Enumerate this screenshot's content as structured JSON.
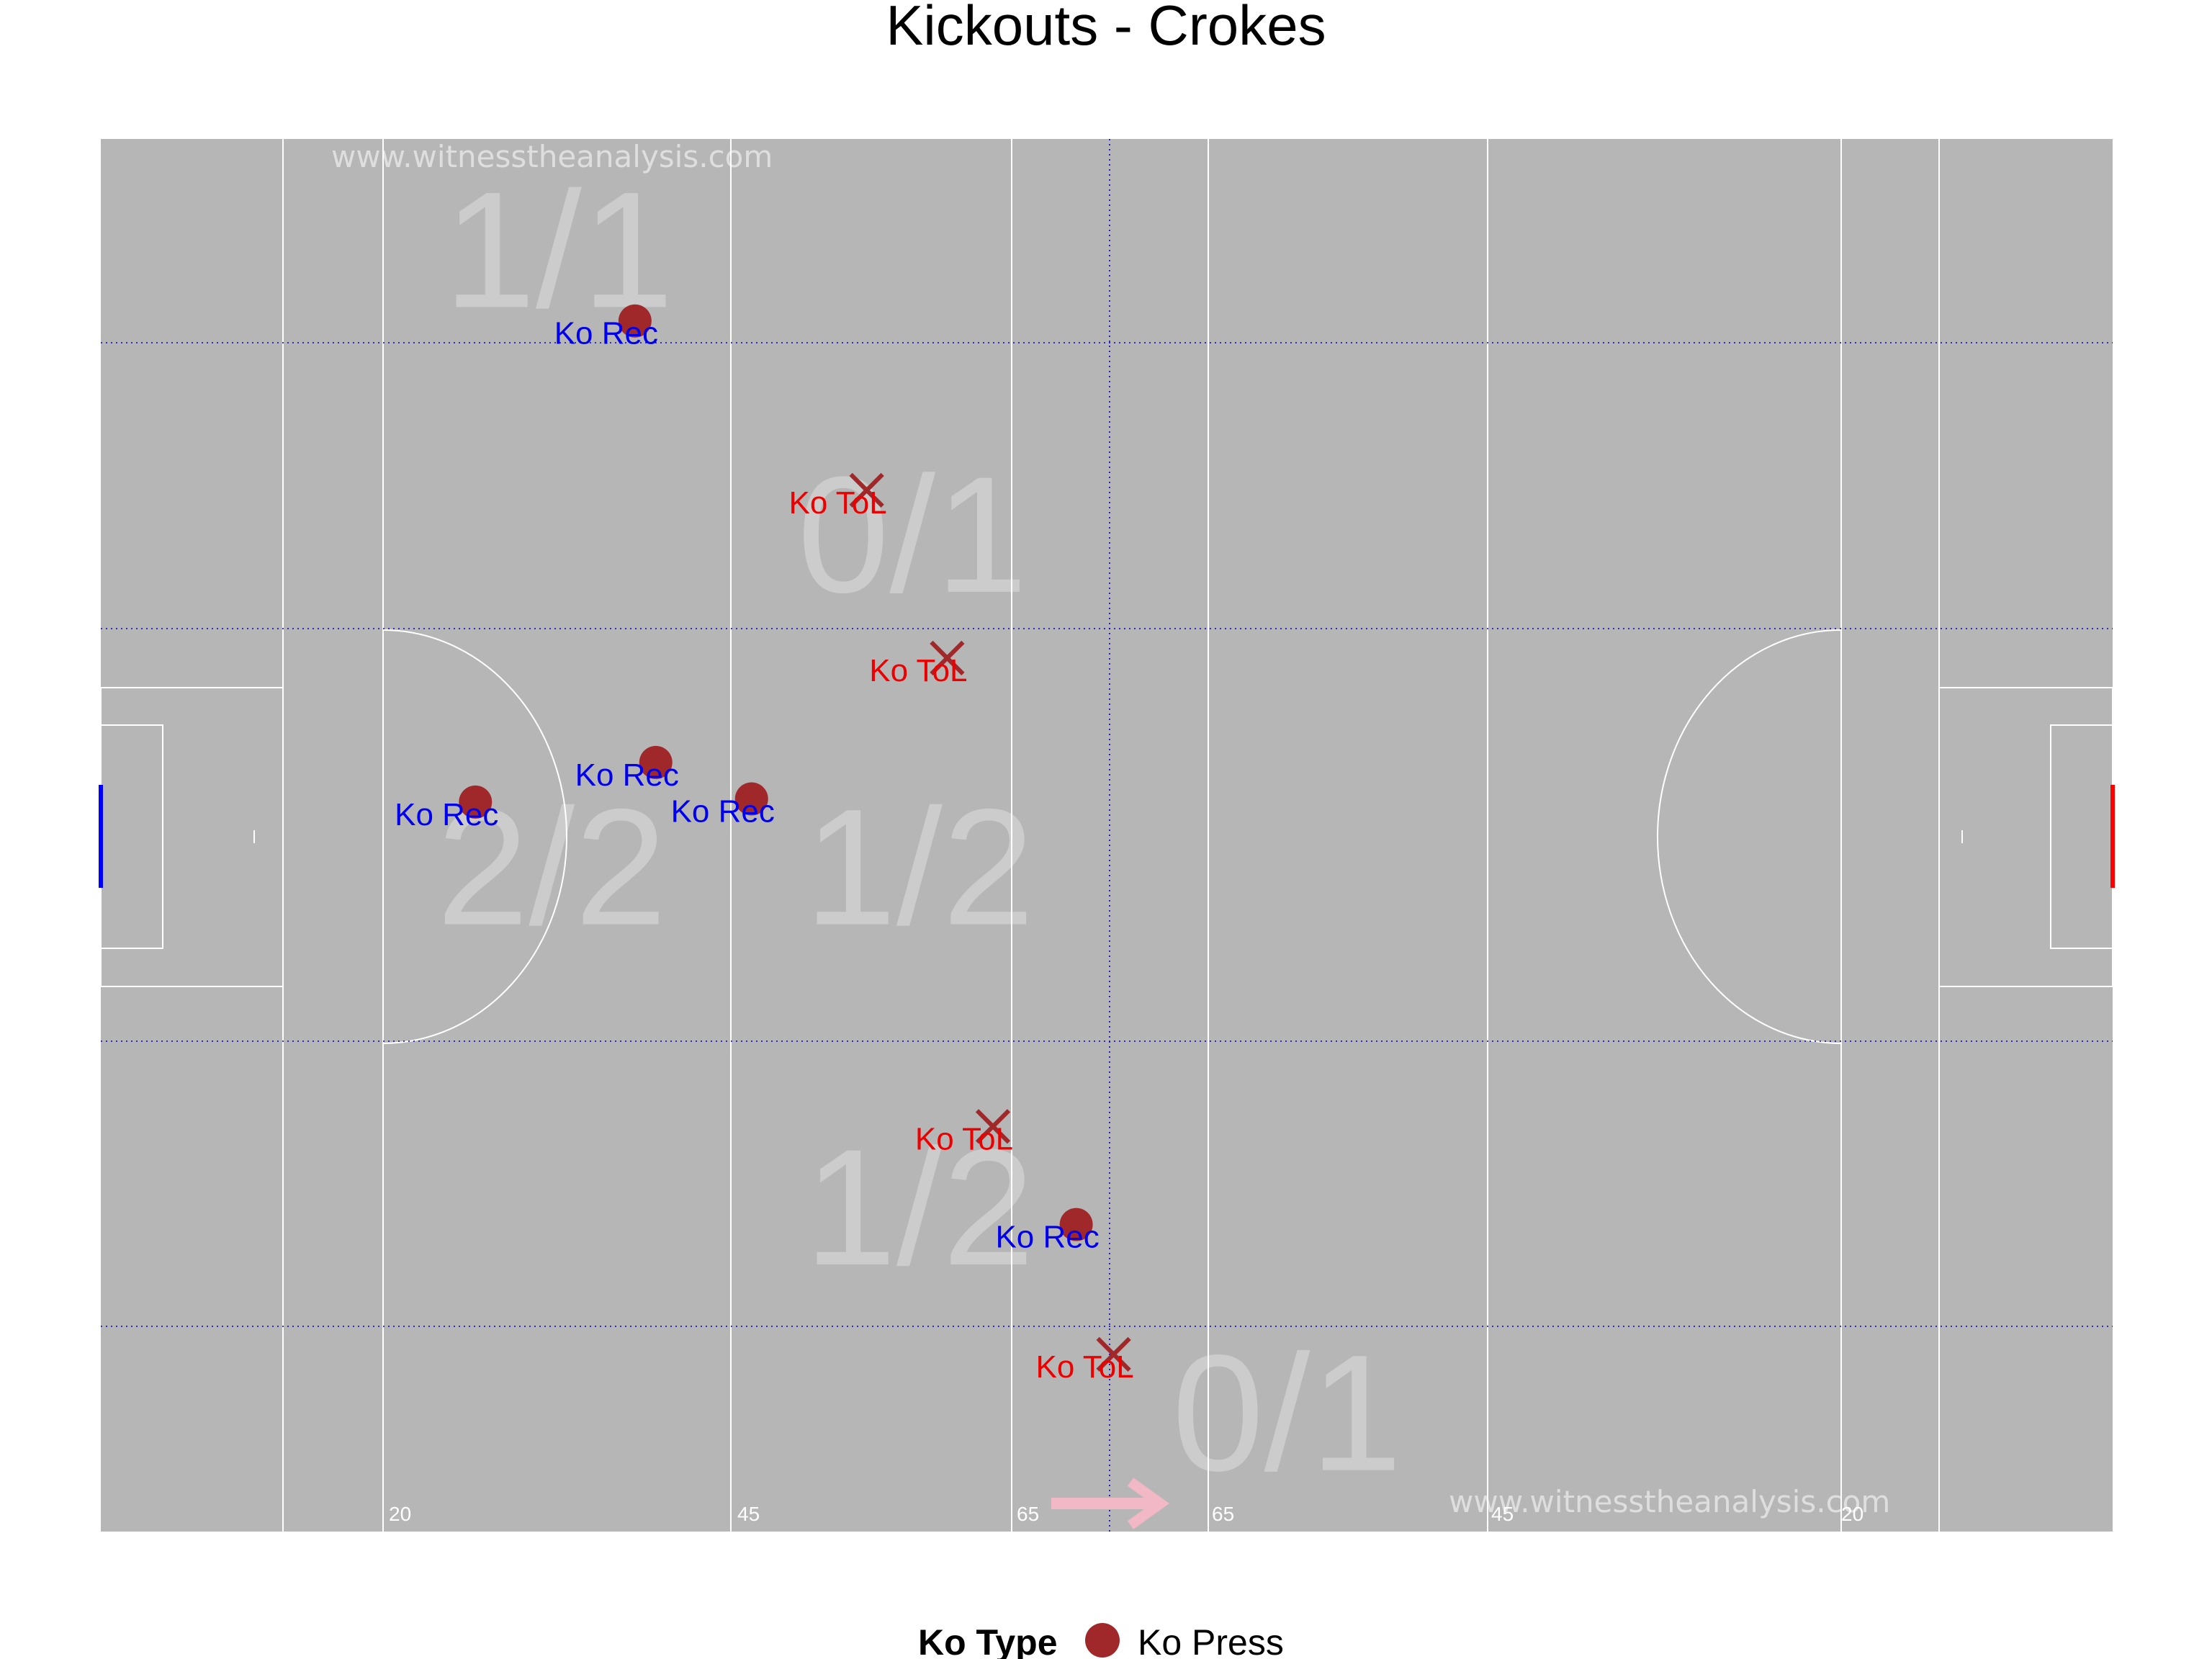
{
  "chart_data": {
    "type": "scatter",
    "title": "Kickouts - Crokes",
    "xlim": [
      0,
      145
    ],
    "ylim": [
      0,
      88
    ],
    "distance_markers": [
      "20",
      "45",
      "65",
      "65",
      "45",
      "20"
    ],
    "watermarks": [
      "www.witnesstheanalysis.com",
      "www.witnesstheanalysis.com"
    ],
    "zones": [
      {
        "label": "1/1",
        "x": 33,
        "y": 81
      },
      {
        "label": "0/1",
        "x": 58.5,
        "y": 63
      },
      {
        "label": "2/2",
        "x": 32.5,
        "y": 42
      },
      {
        "label": "1/2",
        "x": 59,
        "y": 42
      },
      {
        "label": "1/2",
        "x": 59,
        "y": 20.5
      },
      {
        "label": "0/1",
        "x": 85.5,
        "y": 7.5
      }
    ],
    "points": [
      {
        "x": 38.5,
        "y": 76.5,
        "outcome": "won",
        "label": "Ko Rec"
      },
      {
        "x": 55.2,
        "y": 65.8,
        "outcome": "lost",
        "label": "Ko ToL"
      },
      {
        "x": 61,
        "y": 55.2,
        "outcome": "lost",
        "label": "Ko ToL"
      },
      {
        "x": 40,
        "y": 48.6,
        "outcome": "won",
        "label": "Ko Rec"
      },
      {
        "x": 27,
        "y": 46.1,
        "outcome": "won",
        "label": "Ko Rec"
      },
      {
        "x": 46.9,
        "y": 46.3,
        "outcome": "won",
        "label": "Ko Rec"
      },
      {
        "x": 64.3,
        "y": 25.6,
        "outcome": "lost",
        "label": "Ko ToL"
      },
      {
        "x": 70.3,
        "y": 19.4,
        "outcome": "won",
        "label": "Ko Rec"
      },
      {
        "x": 73,
        "y": 11.2,
        "outcome": "lost",
        "label": "Ko ToL"
      }
    ],
    "legend": {
      "title": "Ko Type",
      "items": [
        "Ko Press"
      ],
      "position": "bottom"
    },
    "colors": {
      "pitch": "#b6b6b6",
      "lines": "#ffffff",
      "grid": "#0000cc",
      "marker": "#a0282a",
      "won_label": "#0000ee",
      "lost_label": "#ee0000",
      "arrow": "#f2b8c6",
      "left_goal": "#0000ff",
      "right_goal": "#ff0000"
    }
  }
}
